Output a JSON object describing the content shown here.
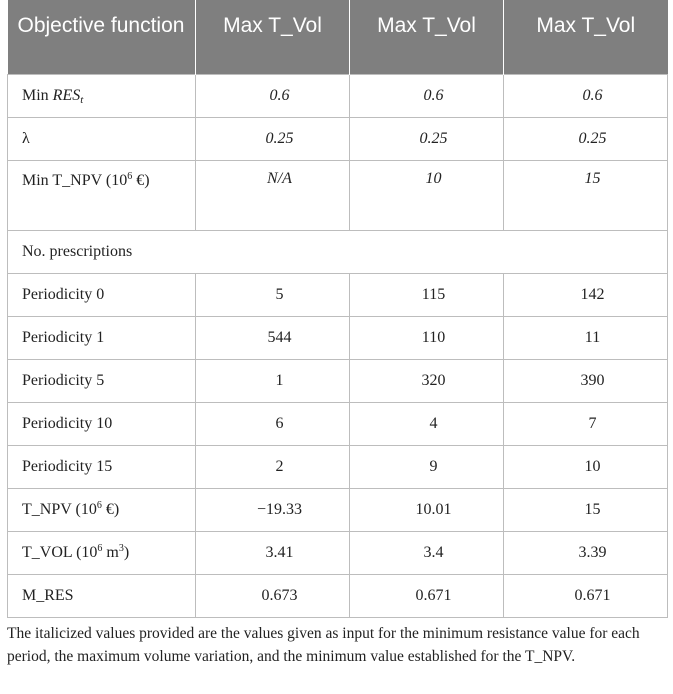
{
  "header": {
    "col1": "Objective function",
    "col2": "Max T_Vol",
    "col3": "Max T_Vol",
    "col4": "Max T_Vol"
  },
  "rows": {
    "min_res": {
      "label_main": "Min ",
      "label_it": "RES",
      "label_sub": "t",
      "v1": "0.6",
      "v2": "0.6",
      "v3": "0.6"
    },
    "lambda": {
      "label": "λ",
      "v1": "0.25",
      "v2": "0.25",
      "v3": "0.25"
    },
    "min_tnpv": {
      "label_a": "Min T_NPV (10",
      "label_sup": "6",
      "label_b": " €)",
      "v1": "N/A",
      "v2": "10",
      "v3": "15"
    },
    "prescriptions": {
      "label": "No. prescriptions"
    },
    "p0": {
      "label": "Periodicity 0",
      "v1": "5",
      "v2": "115",
      "v3": "142"
    },
    "p1": {
      "label": "Periodicity 1",
      "v1": "544",
      "v2": "110",
      "v3": "11"
    },
    "p5": {
      "label": "Periodicity 5",
      "v1": "1",
      "v2": "320",
      "v3": "390"
    },
    "p10": {
      "label": "Periodicity 10",
      "v1": "6",
      "v2": "4",
      "v3": "7"
    },
    "p15": {
      "label": "Periodicity 15",
      "v1": "2",
      "v2": "9",
      "v3": "10"
    },
    "tnpv": {
      "label_a": "T_NPV (10",
      "label_sup": "6",
      "label_b": " €)",
      "v1": "−19.33",
      "v2": "10.01",
      "v3": "15"
    },
    "tvol": {
      "label_a": "T_VOL (10",
      "label_sup": "6",
      "label_b": " m",
      "label_sup2": "3",
      "label_c": ")",
      "v1": "3.41",
      "v2": "3.4",
      "v3": "3.39"
    },
    "mres": {
      "label": "M_RES",
      "v1": "0.673",
      "v2": "0.671",
      "v3": "0.671"
    }
  },
  "footnote": "The italicized values provided are the values given as input for the minimum resistance value for each period, the maximum volume variation, and the minimum value established for the T_NPV."
}
